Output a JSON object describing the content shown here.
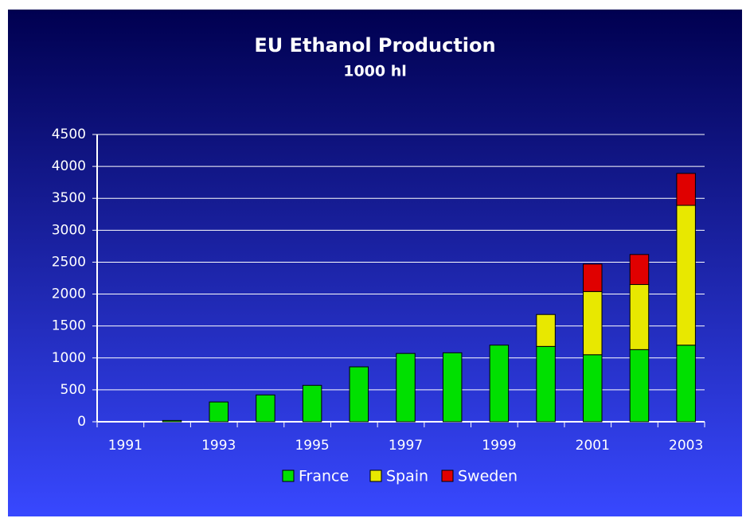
{
  "chart_data": {
    "type": "stacked_bar",
    "title": "EU Ethanol Production",
    "subtitle": "1000 hl",
    "categories": [
      "1991",
      null,
      "1993",
      null,
      "1995",
      null,
      "1997",
      null,
      "1999",
      null,
      "2001",
      null,
      "2003"
    ],
    "series": [
      {
        "name": "France",
        "color": "#00e000",
        "values": [
          0,
          20,
          310,
          420,
          570,
          860,
          1070,
          1080,
          1200,
          1180,
          1050,
          1130,
          1200
        ]
      },
      {
        "name": "Spain",
        "color": "#e8e800",
        "values": [
          0,
          0,
          0,
          0,
          0,
          0,
          0,
          0,
          0,
          500,
          990,
          1020,
          2190
        ]
      },
      {
        "name": "Sweden",
        "color": "#e00000",
        "values": [
          0,
          0,
          0,
          0,
          0,
          0,
          0,
          0,
          0,
          0,
          430,
          470,
          500
        ]
      }
    ],
    "ylim": [
      0,
      4500
    ],
    "yticks": [
      0,
      500,
      1000,
      1500,
      2000,
      2500,
      3000,
      3500,
      4000,
      4500
    ],
    "grid": true,
    "legend": "bottom"
  }
}
